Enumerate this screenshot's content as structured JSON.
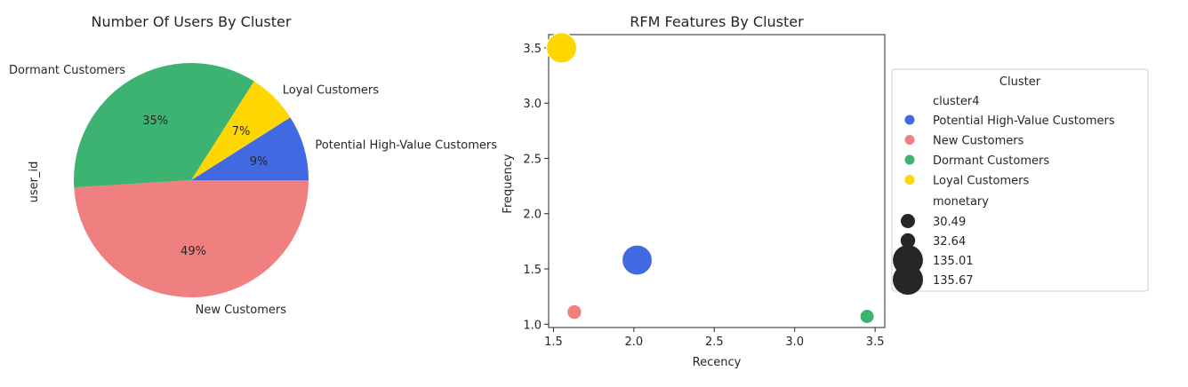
{
  "colors": {
    "blue": "#4169e1",
    "red": "#f08080",
    "green": "#3cb371",
    "gold": "#ffd700",
    "size_marker": "#262626"
  },
  "chart_data": [
    {
      "type": "pie",
      "title": "Number Of Users By Cluster",
      "ylabel": "user_id",
      "slices": [
        {
          "label": "Potential High-Value Customers",
          "value": 9,
          "pct_label": "9%",
          "color": "#4169e1"
        },
        {
          "label": "Loyal Customers",
          "value": 7,
          "pct_label": "7%",
          "color": "#ffd700"
        },
        {
          "label": "Dormant Customers",
          "value": 35,
          "pct_label": "35%",
          "color": "#3cb371"
        },
        {
          "label": "New Customers",
          "value": 49,
          "pct_label": "49%",
          "color": "#f08080"
        }
      ]
    },
    {
      "type": "scatter",
      "title": "RFM Features By Cluster",
      "xlabel": "Recency",
      "ylabel": "Frequency",
      "xlim": [
        1.47,
        3.56
      ],
      "ylim": [
        0.97,
        3.62
      ],
      "xticks": [
        "1.5",
        "2.0",
        "2.5",
        "3.0",
        "3.5"
      ],
      "yticks": [
        "1.0",
        "1.5",
        "2.0",
        "2.5",
        "3.0",
        "3.5"
      ],
      "grid": false,
      "points": [
        {
          "cluster": "Potential High-Value Customers",
          "x": 2.02,
          "y": 1.58,
          "monetary": 135.01,
          "color": "#4169e1"
        },
        {
          "cluster": "New Customers",
          "x": 1.63,
          "y": 1.11,
          "monetary": 32.64,
          "color": "#f08080"
        },
        {
          "cluster": "Dormant Customers",
          "x": 3.45,
          "y": 1.07,
          "monetary": 30.49,
          "color": "#3cb371"
        },
        {
          "cluster": "Loyal Customers",
          "x": 1.55,
          "y": 3.5,
          "monetary": 135.67,
          "color": "#ffd700"
        }
      ],
      "legend": {
        "title": "Cluster",
        "placement": "outside-right",
        "hue_title": "cluster4",
        "hue_entries": [
          {
            "label": "Potential High-Value Customers",
            "color": "#4169e1"
          },
          {
            "label": "New Customers",
            "color": "#f08080"
          },
          {
            "label": "Dormant Customers",
            "color": "#3cb371"
          },
          {
            "label": "Loyal Customers",
            "color": "#ffd700"
          }
        ],
        "size_title": "monetary",
        "size_entries": [
          "30.49",
          "32.64",
          "135.01",
          "135.67"
        ]
      }
    }
  ]
}
